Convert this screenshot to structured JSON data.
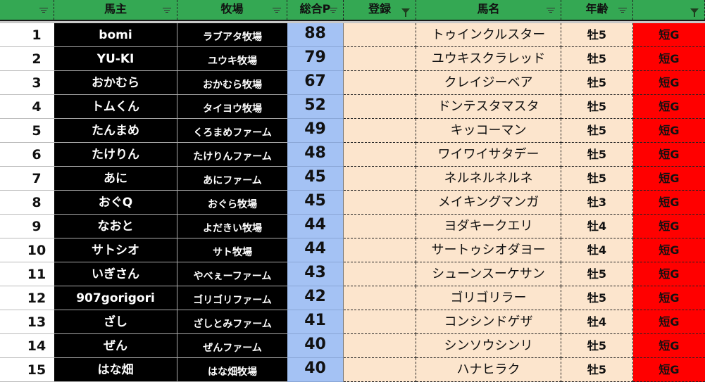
{
  "header": {
    "columns": [
      {
        "label": "",
        "filter_active": false
      },
      {
        "label": "馬主",
        "filter_active": false
      },
      {
        "label": "牧場",
        "filter_active": false
      },
      {
        "label": "総合P",
        "filter_active": false
      },
      {
        "label": "登録",
        "filter_active": true
      },
      {
        "label": "馬名",
        "filter_active": false
      },
      {
        "label": "年齢",
        "filter_active": false
      },
      {
        "label": "",
        "filter_active": true
      }
    ]
  },
  "colors": {
    "header": "#34a853",
    "points": "#a4c2f4",
    "horse": "#fce5cd",
    "class": "#ff0000",
    "owner": "#000000"
  },
  "rows": [
    {
      "rank": "1",
      "owner": "bomi",
      "farm": "ラブアタ牧場",
      "points": "88",
      "registered": "",
      "horse": "トゥインクルスター",
      "age": "牡5",
      "class": "短G"
    },
    {
      "rank": "2",
      "owner": "YU-KI",
      "farm": "ユウキ牧場",
      "points": "79",
      "registered": "",
      "horse": "ユウキスクラレッド",
      "age": "牡5",
      "class": "短G"
    },
    {
      "rank": "3",
      "owner": "おかむら",
      "farm": "おかむら牧場",
      "points": "67",
      "registered": "",
      "horse": "クレイジーベア",
      "age": "牡5",
      "class": "短G"
    },
    {
      "rank": "4",
      "owner": "トムくん",
      "farm": "タイヨウ牧場",
      "points": "52",
      "registered": "",
      "horse": "ドンテスタマスタ",
      "age": "牡5",
      "class": "短G"
    },
    {
      "rank": "5",
      "owner": "たんまめ",
      "farm": "くろまめファーム",
      "points": "49",
      "registered": "",
      "horse": "キッコーマン",
      "age": "牡5",
      "class": "短G"
    },
    {
      "rank": "6",
      "owner": "たけりん",
      "farm": "たけりんファーム",
      "points": "48",
      "registered": "",
      "horse": "ワイワイサタデー",
      "age": "牡5",
      "class": "短G"
    },
    {
      "rank": "7",
      "owner": "あに",
      "farm": "あにファーム",
      "points": "45",
      "registered": "",
      "horse": "ネルネルネルネ",
      "age": "牡5",
      "class": "短G"
    },
    {
      "rank": "8",
      "owner": "おぐQ",
      "farm": "おぐら牧場",
      "points": "45",
      "registered": "",
      "horse": "メイキングマンガ",
      "age": "牡3",
      "class": "短G"
    },
    {
      "rank": "9",
      "owner": "なおと",
      "farm": "よだきい牧場",
      "points": "44",
      "registered": "",
      "horse": "ヨダキークエリ",
      "age": "牡4",
      "class": "短G"
    },
    {
      "rank": "10",
      "owner": "サトシオ",
      "farm": "サト牧場",
      "points": "44",
      "registered": "",
      "horse": "サートゥシオダヨー",
      "age": "牡4",
      "class": "短G"
    },
    {
      "rank": "11",
      "owner": "いぎさん",
      "farm": "やべぇーファーム",
      "points": "43",
      "registered": "",
      "horse": "シューンスーケサン",
      "age": "牡5",
      "class": "短G"
    },
    {
      "rank": "12",
      "owner": "907gorigori",
      "farm": "ゴリゴリファーム",
      "points": "42",
      "registered": "",
      "horse": "ゴリゴリラー",
      "age": "牡5",
      "class": "短G"
    },
    {
      "rank": "13",
      "owner": "ざし",
      "farm": "ざしとみファーム",
      "points": "41",
      "registered": "",
      "horse": "コンシンドゲザ",
      "age": "牡4",
      "class": "短G"
    },
    {
      "rank": "14",
      "owner": "ぜん",
      "farm": "ぜんファーム",
      "points": "40",
      "registered": "",
      "horse": "シンソウシンリ",
      "age": "牡5",
      "class": "短G"
    },
    {
      "rank": "15",
      "owner": "はな畑",
      "farm": "はな畑牧場",
      "points": "40",
      "registered": "",
      "horse": "ハナヒラク",
      "age": "牡5",
      "class": "短G"
    }
  ]
}
